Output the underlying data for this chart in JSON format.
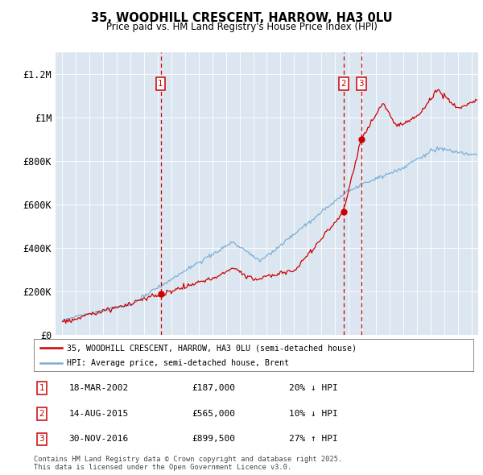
{
  "title": "35, WOODHILL CRESCENT, HARROW, HA3 0LU",
  "subtitle": "Price paid vs. HM Land Registry's House Price Index (HPI)",
  "bg_color": "#dce6f1",
  "red_line_color": "#cc0000",
  "blue_line_color": "#7bafd4",
  "vline_color": "#cc0000",
  "transactions": [
    {
      "num": 1,
      "date_str": "18-MAR-2002",
      "date_x": 2002.21,
      "price": 187000,
      "label": "20% ↓ HPI"
    },
    {
      "num": 2,
      "date_str": "14-AUG-2015",
      "date_x": 2015.62,
      "price": 565000,
      "label": "10% ↓ HPI"
    },
    {
      "num": 3,
      "date_str": "30-NOV-2016",
      "date_x": 2016.92,
      "price": 899500,
      "label": "27% ↑ HPI"
    }
  ],
  "legend_label_red": "35, WOODHILL CRESCENT, HARROW, HA3 0LU (semi-detached house)",
  "legend_label_blue": "HPI: Average price, semi-detached house, Brent",
  "footer": "Contains HM Land Registry data © Crown copyright and database right 2025.\nThis data is licensed under the Open Government Licence v3.0.",
  "ylim": [
    0,
    1300000
  ],
  "xlim": [
    1994.5,
    2025.5
  ],
  "yticks": [
    0,
    200000,
    400000,
    600000,
    800000,
    1000000,
    1200000
  ],
  "ytick_labels": [
    "£0",
    "£200K",
    "£400K",
    "£600K",
    "£800K",
    "£1M",
    "£1.2M"
  ],
  "xticks": [
    1995,
    1996,
    1997,
    1998,
    1999,
    2000,
    2001,
    2002,
    2003,
    2004,
    2005,
    2006,
    2007,
    2008,
    2009,
    2010,
    2011,
    2012,
    2013,
    2014,
    2015,
    2016,
    2017,
    2018,
    2019,
    2020,
    2021,
    2022,
    2023,
    2024,
    2025
  ]
}
